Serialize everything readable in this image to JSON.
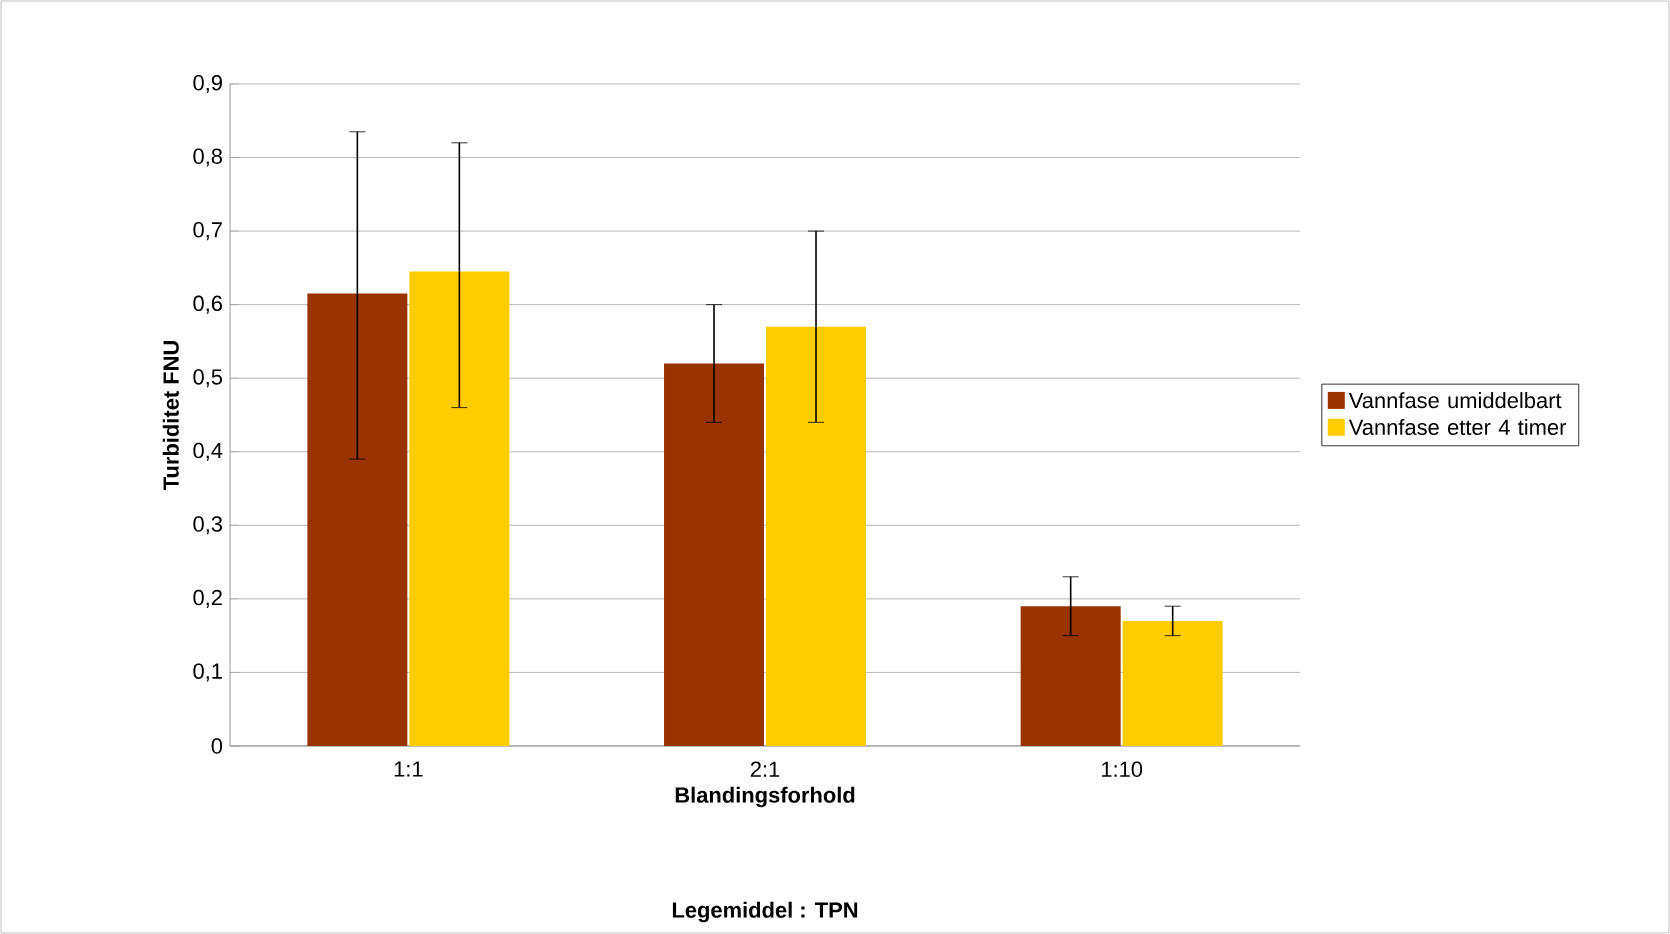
{
  "chart_data": {
    "type": "bar",
    "xlabel": "Blandingsforhold",
    "ylabel": "Turbiditet FNU",
    "annotations": [
      "Legemiddel : TPN"
    ],
    "categories": [
      "1:1",
      "2:1",
      "1:10"
    ],
    "series": [
      {
        "name": "Vannfase umiddelbart",
        "color": "#993300",
        "values": [
          0.615,
          0.52,
          0.19
        ],
        "errors": [
          [
            0.39,
            0.835
          ],
          [
            0.44,
            0.6
          ],
          [
            0.15,
            0.23
          ]
        ]
      },
      {
        "name": "Vannfase etter 4 timer",
        "color": "#ffcc00",
        "values": [
          0.645,
          0.57,
          0.17
        ],
        "errors": [
          [
            0.46,
            0.82
          ],
          [
            0.44,
            0.7
          ],
          [
            0.15,
            0.19
          ]
        ]
      }
    ],
    "ylim": [
      0,
      0.9
    ],
    "yticks": [
      0,
      {
        "value": 0.1,
        "label": "0,1"
      },
      {
        "value": 0.2,
        "label": "0,2"
      },
      {
        "value": 0.3,
        "label": "0,3"
      },
      {
        "value": 0.4,
        "label": "0,4"
      },
      {
        "value": 0.5,
        "label": "0,5"
      },
      {
        "value": 0.6,
        "label": "0,6"
      },
      {
        "value": 0.7,
        "label": "0,7"
      },
      {
        "value": 0.8,
        "label": "0,8"
      },
      {
        "value": 0.9,
        "label": "0,9"
      }
    ],
    "grid": "y",
    "legend": "right"
  }
}
